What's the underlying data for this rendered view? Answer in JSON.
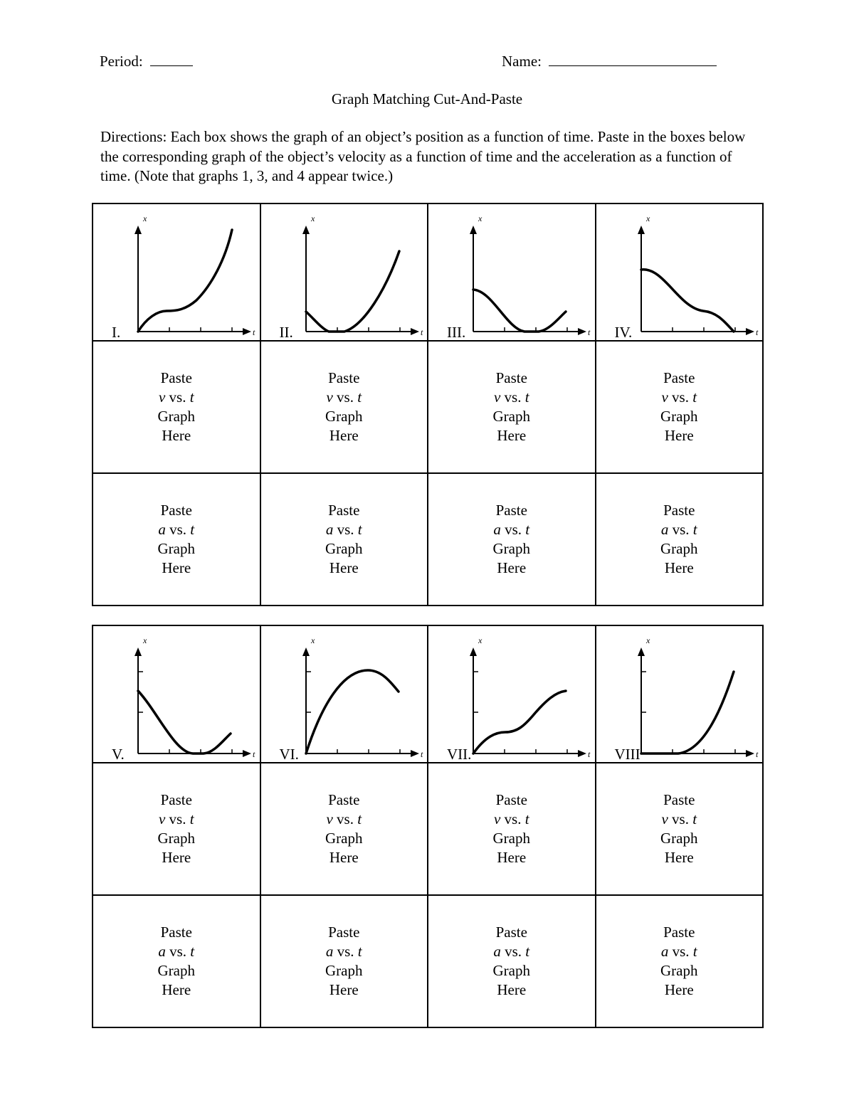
{
  "header": {
    "period_label": "Period:",
    "name_label": "Name:"
  },
  "title": "Graph Matching Cut-And-Paste",
  "directions": "Directions:  Each box shows the graph of an object’s position as a function of time.  Paste in the boxes below the corresponding graph of the object’s velocity as a function of time and the acceleration as a function of time.  (Note that graphs 1, 3, and 4 appear twice.)",
  "axis_labels": {
    "y": "x",
    "x": "t"
  },
  "paste_velocity": {
    "line1": "Paste",
    "var": "v",
    "vs": " vs. ",
    "t": "t",
    "line3": "Graph",
    "line4": "Here"
  },
  "paste_acceleration": {
    "line1": "Paste",
    "var": "a",
    "vs": " vs. ",
    "t": "t",
    "line3": "Graph",
    "line4": "Here"
  },
  "graphs": [
    {
      "label": "I.",
      "shape": "rises, levels briefly, then curves steeply upward"
    },
    {
      "label": "II.",
      "shape": "decreases to zero, stays at zero, then increases"
    },
    {
      "label": "III.",
      "shape": "decreases to zero, stays at zero, then increases"
    },
    {
      "label": "IV.",
      "shape": "decreases, levels briefly, decreases to zero"
    },
    {
      "label": "V.",
      "shape": "decreases to zero, stays at zero, then increases"
    },
    {
      "label": "VI.",
      "shape": "rises to a maximum then decreases"
    },
    {
      "label": "VII.",
      "shape": "rises, levels briefly, rises again"
    },
    {
      "label": "VIII",
      "shape": "zero then curves upward"
    }
  ]
}
